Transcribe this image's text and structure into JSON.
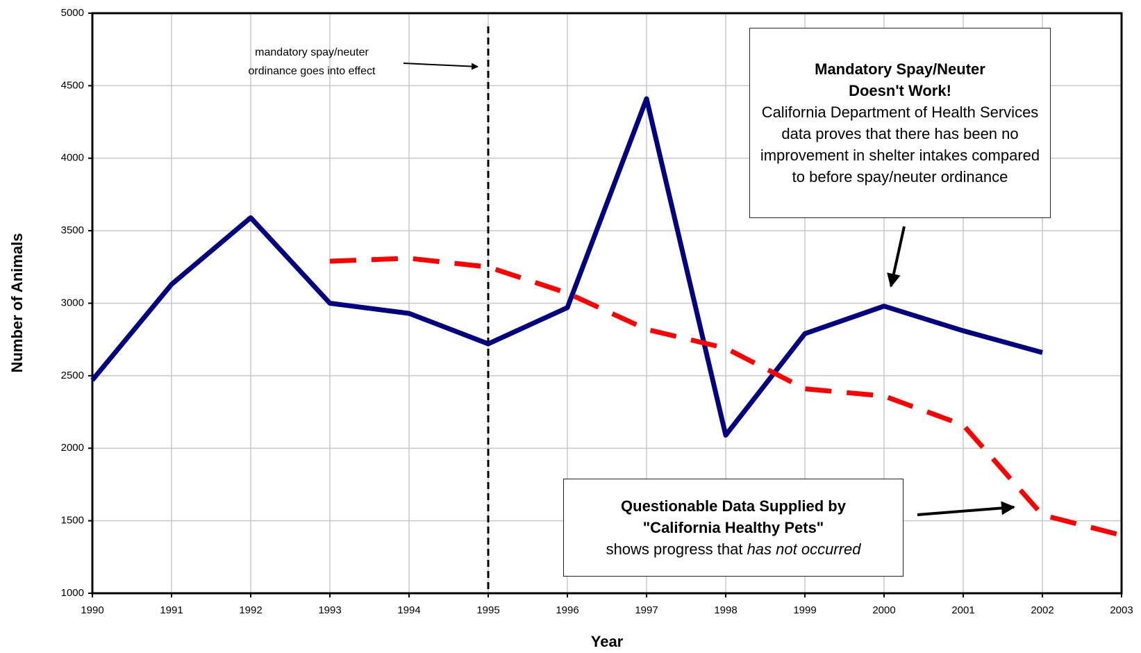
{
  "chart_data": {
    "type": "line",
    "x_label": "Year",
    "y_label": "Number of Animals",
    "annotation": "mandatory spay/neuter ordinance goes into effect",
    "marker_x": 1995,
    "callout_1": {
      "title": "Mandatory Spay/Neuter Doesn't Work!",
      "text": "California Department of Health Services data proves that there has been no improvement in shelter intakes compared to before spay/neuter ordinance"
    },
    "callout_2": {
      "title": "Questionable Data Supplied by \"California Healthy Pets\"",
      "text": "shows progress that",
      "emphasis": "has not occurred"
    },
    "x": [
      1990,
      1991,
      1992,
      1993,
      1994,
      1995,
      1996,
      1997,
      1998,
      1999,
      2000,
      2001,
      2002,
      2003
    ],
    "series": [
      {
        "color": "#000080",
        "dashed": false,
        "values": [
          2470,
          3130,
          3590,
          3000,
          2930,
          2720,
          2970,
          4410,
          2090,
          2790,
          2980,
          2810,
          2660,
          null
        ]
      },
      {
        "color": "#ff0000",
        "dashed": true,
        "values": [
          null,
          null,
          null,
          3290,
          3310,
          3250,
          3070,
          2820,
          2690,
          2410,
          2360,
          2160,
          1540,
          1400
        ]
      }
    ],
    "xlim": [
      1990,
      2003
    ],
    "xticks": [
      1990,
      1991,
      1992,
      1993,
      1994,
      1995,
      1996,
      1997,
      1998,
      1999,
      2000,
      2001,
      2002,
      2003
    ],
    "ylim": [
      1000,
      5000
    ],
    "yticks": [
      1000,
      1500,
      2000,
      2500,
      3000,
      3500,
      4000,
      4500,
      5000
    ],
    "grid": true
  }
}
